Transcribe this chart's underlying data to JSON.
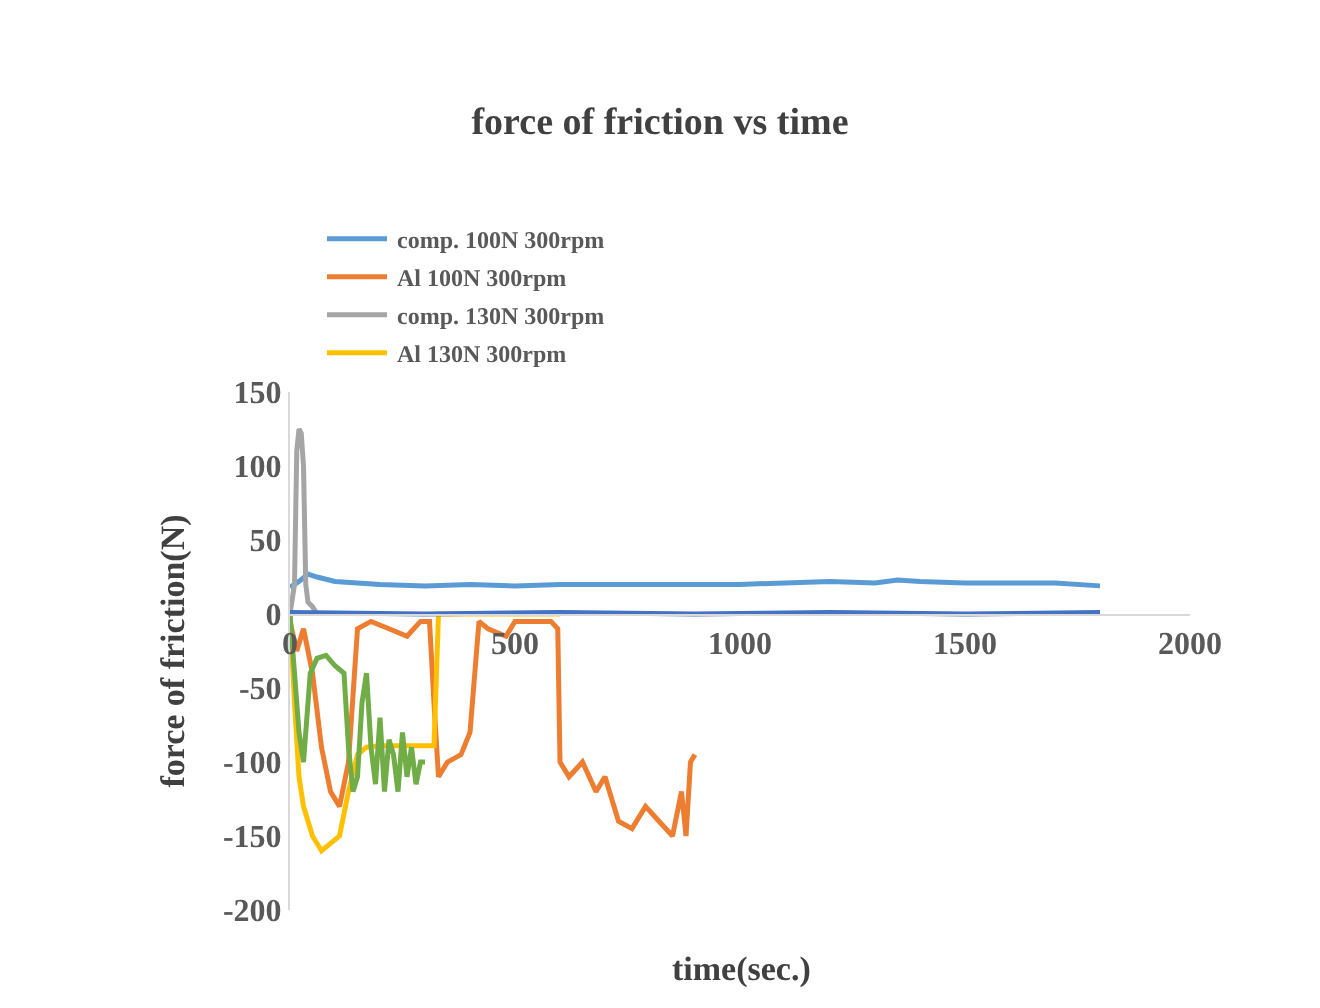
{
  "chart_data": {
    "type": "line",
    "title": "force of friction vs time",
    "xlabel": "time(sec.)",
    "ylabel": "force of friction(N)",
    "xlim": [
      0,
      2000
    ],
    "xticks": [
      0,
      500,
      1000,
      1500,
      2000
    ],
    "ylim": [
      -200,
      150
    ],
    "yticks": [
      -200,
      -150,
      -100,
      -50,
      0,
      50,
      100,
      150
    ],
    "grid": false,
    "legend": "top left",
    "marker": "none",
    "line_style": "solid",
    "series": [
      {
        "name": "comp. 100N 300rpm",
        "color": "#5b9bd5",
        "x": [
          0,
          20,
          40,
          60,
          100,
          200,
          300,
          400,
          500,
          600,
          700,
          800,
          900,
          1000,
          1100,
          1200,
          1300,
          1350,
          1400,
          1500,
          1600,
          1700,
          1800
        ],
        "values": [
          18,
          22,
          27,
          25,
          22,
          20,
          19,
          20,
          19,
          20,
          20,
          20,
          20,
          20,
          21,
          22,
          21,
          23,
          22,
          21,
          21,
          21,
          19
        ]
      },
      {
        "name": "Al 100N 300rpm",
        "color": "#ed7d31",
        "x": [
          0,
          15,
          30,
          50,
          70,
          90,
          110,
          130,
          150,
          180,
          220,
          260,
          290,
          310,
          320,
          330,
          350,
          380,
          400,
          420,
          440,
          480,
          500,
          540,
          580,
          595,
          600,
          620,
          650,
          680,
          700,
          730,
          760,
          790,
          820,
          850,
          870,
          880,
          890,
          900
        ],
        "values": [
          -5,
          -25,
          -10,
          -40,
          -90,
          -120,
          -130,
          -100,
          -10,
          -5,
          -10,
          -15,
          -5,
          -5,
          -60,
          -110,
          -100,
          -95,
          -80,
          -5,
          -10,
          -15,
          -5,
          -5,
          -5,
          -10,
          -100,
          -110,
          -100,
          -120,
          -110,
          -140,
          -145,
          -130,
          -140,
          -150,
          -120,
          -150,
          -100,
          -95
        ]
      },
      {
        "name": "comp. 130N 300rpm",
        "color": "#a5a5a5",
        "x": [
          0,
          10,
          15,
          20,
          25,
          30,
          35,
          40,
          50,
          60
        ],
        "values": [
          0,
          20,
          110,
          125,
          122,
          100,
          20,
          8,
          5,
          0
        ]
      },
      {
        "name": "Al 130N 300rpm",
        "color": "#ffc000",
        "x": [
          0,
          10,
          20,
          30,
          50,
          70,
          90,
          110,
          130,
          150,
          170,
          200,
          250,
          300,
          320,
          330,
          400,
          500,
          600
        ],
        "values": [
          0,
          -60,
          -110,
          -130,
          -150,
          -160,
          -155,
          -150,
          -120,
          -95,
          -90,
          -89,
          -89,
          -89,
          -89,
          0,
          0,
          0,
          0
        ]
      },
      {
        "color": "#70ad47",
        "x": [
          0,
          10,
          20,
          30,
          45,
          60,
          80,
          100,
          120,
          130,
          140,
          150,
          160,
          170,
          180,
          190,
          200,
          210,
          220,
          230,
          240,
          250,
          260,
          270,
          280,
          290,
          300
        ],
        "values": [
          0,
          -40,
          -80,
          -100,
          -40,
          -30,
          -28,
          -35,
          -40,
          -90,
          -120,
          -110,
          -60,
          -40,
          -90,
          -115,
          -70,
          -120,
          -85,
          -95,
          -120,
          -80,
          -110,
          -90,
          -115,
          -100,
          -100
        ]
      },
      {
        "color": "#4472c4",
        "x": [
          0,
          300,
          600,
          900,
          1200,
          1500,
          1800
        ],
        "values": [
          1,
          0,
          1,
          0,
          1,
          0,
          1
        ]
      }
    ]
  }
}
